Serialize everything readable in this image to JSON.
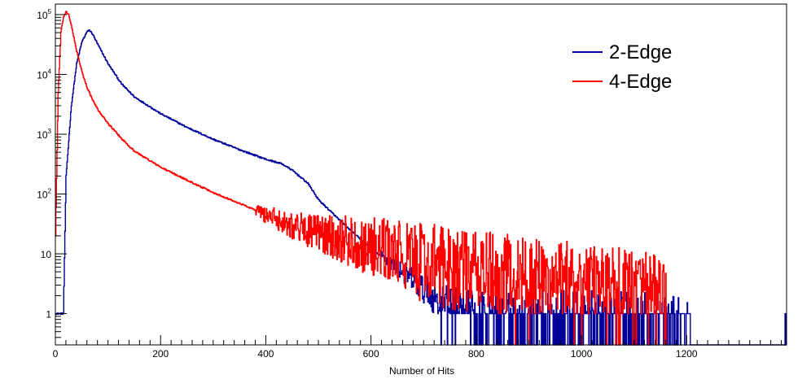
{
  "chart_data": {
    "type": "line",
    "title": "",
    "xlabel": "Number of Hits",
    "ylabel": "",
    "xlim": [
      0,
      1390
    ],
    "ylim": [
      0.3,
      150000
    ],
    "yscale": "log",
    "grid": false,
    "legend_position": "top-right",
    "x_ticks": [
      0,
      200,
      400,
      600,
      800,
      1000,
      1200
    ],
    "x_tick_labels": [
      "0",
      "200",
      "400",
      "600",
      "800",
      "1000",
      "1200"
    ],
    "y_ticks": [
      1,
      10,
      100,
      1000,
      10000,
      100000
    ],
    "y_tick_labels": [
      {
        "base": "1",
        "exp": ""
      },
      {
        "base": "10",
        "exp": ""
      },
      {
        "base": "10",
        "exp": "2"
      },
      {
        "base": "10",
        "exp": "3"
      },
      {
        "base": "10",
        "exp": "4"
      },
      {
        "base": "10",
        "exp": "5"
      }
    ],
    "series": [
      {
        "name": "2-Edge",
        "color": "#000099",
        "x": [
          0,
          15,
          20,
          30,
          40,
          50,
          60,
          64,
          70,
          80,
          100,
          125,
          150,
          200,
          250,
          300,
          350,
          400,
          430,
          450,
          480,
          500,
          550,
          600,
          650,
          700,
          750,
          800,
          850,
          900,
          1000,
          1100,
          1150,
          1200,
          1210
        ],
        "y": [
          1,
          1,
          200,
          3000,
          15000,
          35000,
          52000,
          55000,
          48000,
          32000,
          15000,
          7000,
          4200,
          2200,
          1300,
          820,
          550,
          380,
          320,
          250,
          150,
          80,
          30,
          12,
          6,
          2.5,
          1.3,
          0.9,
          0.7,
          0.6,
          0.5,
          0.5,
          0.4,
          0.4,
          0.4
        ],
        "noise_from_x": 620
      },
      {
        "name": "4-Edge",
        "color": "#ff0000",
        "x": [
          0,
          5,
          10,
          15,
          20,
          25,
          30,
          40,
          50,
          60,
          70,
          80,
          100,
          125,
          150,
          200,
          250,
          300,
          350,
          400,
          450,
          500,
          550,
          600,
          650,
          700,
          800,
          900,
          1000,
          1100,
          1150,
          1160
        ],
        "y": [
          20,
          5000,
          50000,
          90000,
          110000,
          100000,
          65000,
          25000,
          11000,
          6000,
          3800,
          2600,
          1500,
          850,
          520,
          280,
          170,
          105,
          70,
          45,
          30,
          22,
          17,
          13,
          10,
          7,
          5,
          4,
          3.3,
          2.5,
          1.8,
          1.5
        ],
        "noise_from_x": 380
      }
    ],
    "annotations": {
      "right_edge_spike": {
        "x": 1387,
        "y": 1
      }
    }
  }
}
